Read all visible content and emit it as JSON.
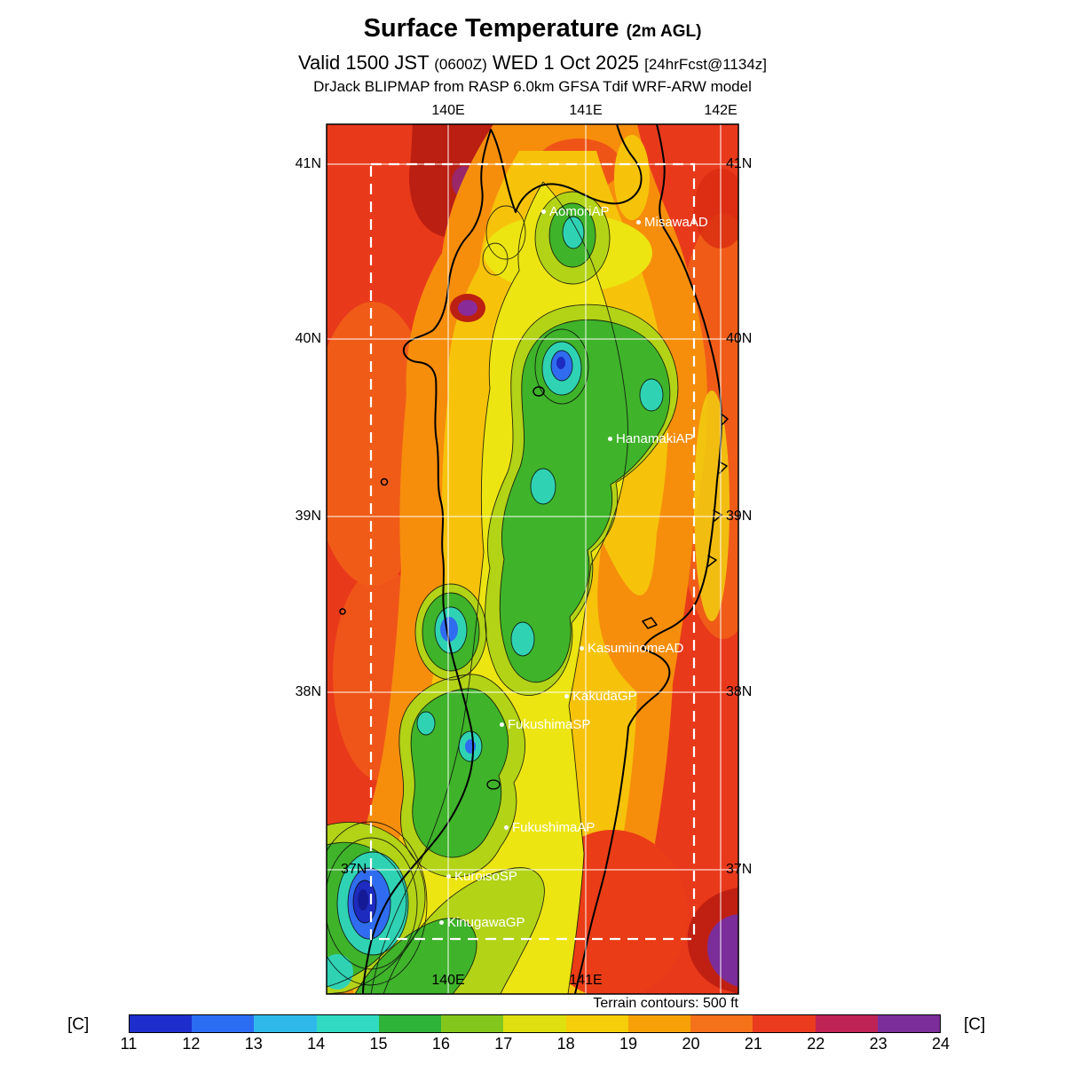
{
  "header": {
    "title": "Surface Temperature",
    "title_suffix": "(2m AGL)",
    "valid_prefix": "Valid 1500 JST",
    "valid_zulu": "(0600Z)",
    "valid_date": "WED 1 Oct 2025",
    "valid_fcst": "[24hrFcst@1134z]",
    "model_line": "DrJack BLIPMAP from RASP 6.0km GFSA Tdif WRF-ARW model"
  },
  "map": {
    "top_lon_labels": [
      "140E",
      "141E",
      "142E"
    ],
    "bottom_lon_labels": [
      "140E",
      "141E"
    ],
    "left_lat_labels": [
      "41N",
      "40N",
      "39N",
      "38N",
      "37N"
    ],
    "right_lat_labels": [
      "41N",
      "40N",
      "39N",
      "38N",
      "37N"
    ],
    "stations": [
      {
        "label": "AomoriAP"
      },
      {
        "label": "MisawaAD"
      },
      {
        "label": "HanamakiAP"
      },
      {
        "label": "KasuminomeAD"
      },
      {
        "label": "KakudaGP"
      },
      {
        "label": "FukushimaSP"
      },
      {
        "label": "FukushimaAP"
      },
      {
        "label": "KuroisoSP"
      },
      {
        "label": "KinugawaGP"
      }
    ],
    "terrain_note": "Terrain contours: 500 ft"
  },
  "colorbar": {
    "unit": "[C]",
    "tick_labels": [
      "11",
      "12",
      "13",
      "14",
      "15",
      "16",
      "17",
      "18",
      "19",
      "20",
      "21",
      "22",
      "23",
      "24"
    ],
    "colors": [
      "#1e2ecc",
      "#2a6cf2",
      "#2fb9ea",
      "#30dbc2",
      "#2eb339",
      "#84c71c",
      "#dfe010",
      "#f6ce0a",
      "#f7a108",
      "#f5711a",
      "#ea3b1e",
      "#bf2355",
      "#7b2d9a"
    ]
  }
}
